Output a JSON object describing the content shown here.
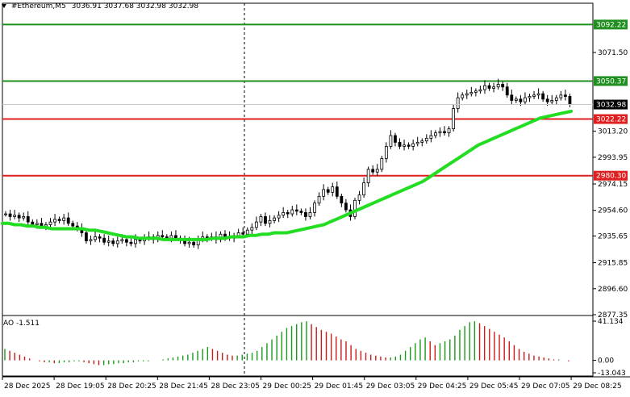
{
  "header": {
    "symbol": "#Ethereum,M5",
    "ohlc": "3036.91 3037.68 3032.98 3032.98"
  },
  "indicator": {
    "label": "AO -1.511",
    "y_ticks": [
      "41.134",
      "0.00",
      "-13.043"
    ]
  },
  "price_axis": {
    "ticks": [
      "3071.50",
      "3013.20",
      "2993.95",
      "2974.15",
      "2954.60",
      "2935.65",
      "2915.85",
      "2896.60",
      "2877.35"
    ],
    "ymin": 2877.35,
    "ymax": 3108.0
  },
  "levels": [
    {
      "label": "3092.22",
      "value": 3092.22,
      "color": "#1f8f1f",
      "name": "resistance-level-3092"
    },
    {
      "label": "3050.37",
      "value": 3050.37,
      "color": "#1f8f1f",
      "name": "resistance-level-3050"
    },
    {
      "label": "3022.22",
      "value": 3022.22,
      "color": "#e02020",
      "name": "support-level-3022"
    },
    {
      "label": "2980.30",
      "value": 2980.3,
      "color": "#e02020",
      "name": "support-level-2980"
    }
  ],
  "current_price": {
    "label": "3032.98",
    "value": 3032.98
  },
  "time_axis": {
    "labels": [
      "28 Dec 2025",
      "28 Dec 19:05",
      "28 Dec 20:25",
      "28 Dec 21:45",
      "28 Dec 23:05",
      "29 Dec 00:25",
      "29 Dec 01:45",
      "29 Dec 03:05",
      "29 Dec 04:25",
      "29 Dec 05:45",
      "29 Dec 07:05",
      "29 Dec 08:25"
    ]
  },
  "colors": {
    "candle": "#000000",
    "moving_average": "#22dd22",
    "ao_up": "#1a9a1a",
    "ao_down": "#cc1a1a",
    "grid_separator": "#c8c8c8"
  },
  "chart_data": {
    "type": "candlestick",
    "timeframe": "M5",
    "ohlc_closes": [
      2952,
      2950,
      2951,
      2949,
      2950,
      2946,
      2944,
      2945,
      2943,
      2944,
      2946,
      2948,
      2947,
      2949,
      2945,
      2943,
      2941,
      2938,
      2932,
      2933,
      2935,
      2934,
      2931,
      2932,
      2930,
      2932,
      2933,
      2931,
      2930,
      2933,
      2932,
      2934,
      2935,
      2933,
      2936,
      2935,
      2934,
      2936,
      2934,
      2933,
      2930,
      2931,
      2929,
      2933,
      2935,
      2934,
      2935,
      2933,
      2937,
      2935,
      2934,
      2936,
      2938,
      2937,
      2940,
      2942,
      2946,
      2950,
      2945,
      2947,
      2949,
      2951,
      2953,
      2952,
      2955,
      2954,
      2953,
      2950,
      2953,
      2960,
      2965,
      2970,
      2968,
      2972,
      2965,
      2960,
      2955,
      2950,
      2962,
      2966,
      2975,
      2985,
      2983,
      2985,
      2993,
      3002,
      3010,
      3005,
      3002,
      3003,
      3002,
      3004,
      3005,
      3006,
      3008,
      3010,
      3012,
      3013,
      3012,
      3015,
      3030,
      3038,
      3040,
      3041,
      3042,
      3043,
      3044,
      3047,
      3045,
      3046,
      3048,
      3046,
      3040,
      3036,
      3037,
      3035,
      3038,
      3039,
      3040,
      3041,
      3037,
      3035,
      3036,
      3038,
      3040,
      3039,
      3033
    ],
    "moving_average": [
      2945,
      2945,
      2944,
      2944,
      2943,
      2943,
      2942,
      2942,
      2941,
      2941,
      2941,
      2941,
      2941,
      2941,
      2940,
      2940,
      2939,
      2938,
      2937,
      2936,
      2935,
      2935,
      2934,
      2934,
      2934,
      2934,
      2933,
      2933,
      2933,
      2933,
      2933,
      2933,
      2933,
      2933,
      2934,
      2934,
      2934,
      2935,
      2935,
      2935,
      2936,
      2936,
      2937,
      2937,
      2938,
      2938,
      2938,
      2939,
      2940,
      2941,
      2942,
      2943,
      2944,
      2946,
      2948,
      2950,
      2952,
      2954,
      2956,
      2958,
      2960,
      2962,
      2964,
      2966,
      2968,
      2970,
      2972,
      2974,
      2976,
      2979,
      2982,
      2985,
      2988,
      2991,
      2994,
      2997,
      3000,
      3003,
      3005,
      3007,
      3009,
      3011,
      3013,
      3015,
      3017,
      3019,
      3021,
      3023,
      3024,
      3025,
      3026,
      3027,
      3028
    ],
    "ao_values": [
      12,
      10,
      8,
      6,
      4,
      2,
      0,
      -1,
      -2,
      -2,
      -3,
      -3,
      -2,
      -2,
      -1,
      -1,
      -2,
      -3,
      -4,
      -5,
      -5,
      -4,
      -4,
      -3,
      -3,
      -2,
      -2,
      -1,
      -1,
      -1,
      0,
      0,
      1,
      2,
      3,
      4,
      5,
      6,
      8,
      10,
      12,
      14,
      12,
      10,
      8,
      6,
      5,
      5,
      6,
      7,
      8,
      10,
      14,
      18,
      22,
      26,
      30,
      34,
      36,
      38,
      40,
      41,
      38,
      35,
      32,
      30,
      28,
      25,
      22,
      20,
      16,
      12,
      10,
      8,
      6,
      5,
      4,
      3,
      3,
      4,
      6,
      10,
      14,
      18,
      22,
      24,
      20,
      16,
      18,
      20,
      22,
      26,
      32,
      36,
      40,
      41,
      39,
      36,
      33,
      30,
      27,
      24,
      20,
      16,
      12,
      9,
      7,
      5,
      4,
      3,
      2,
      1,
      1,
      0,
      -1
    ],
    "ao_ylim": [
      -13.043,
      41.134
    ]
  }
}
